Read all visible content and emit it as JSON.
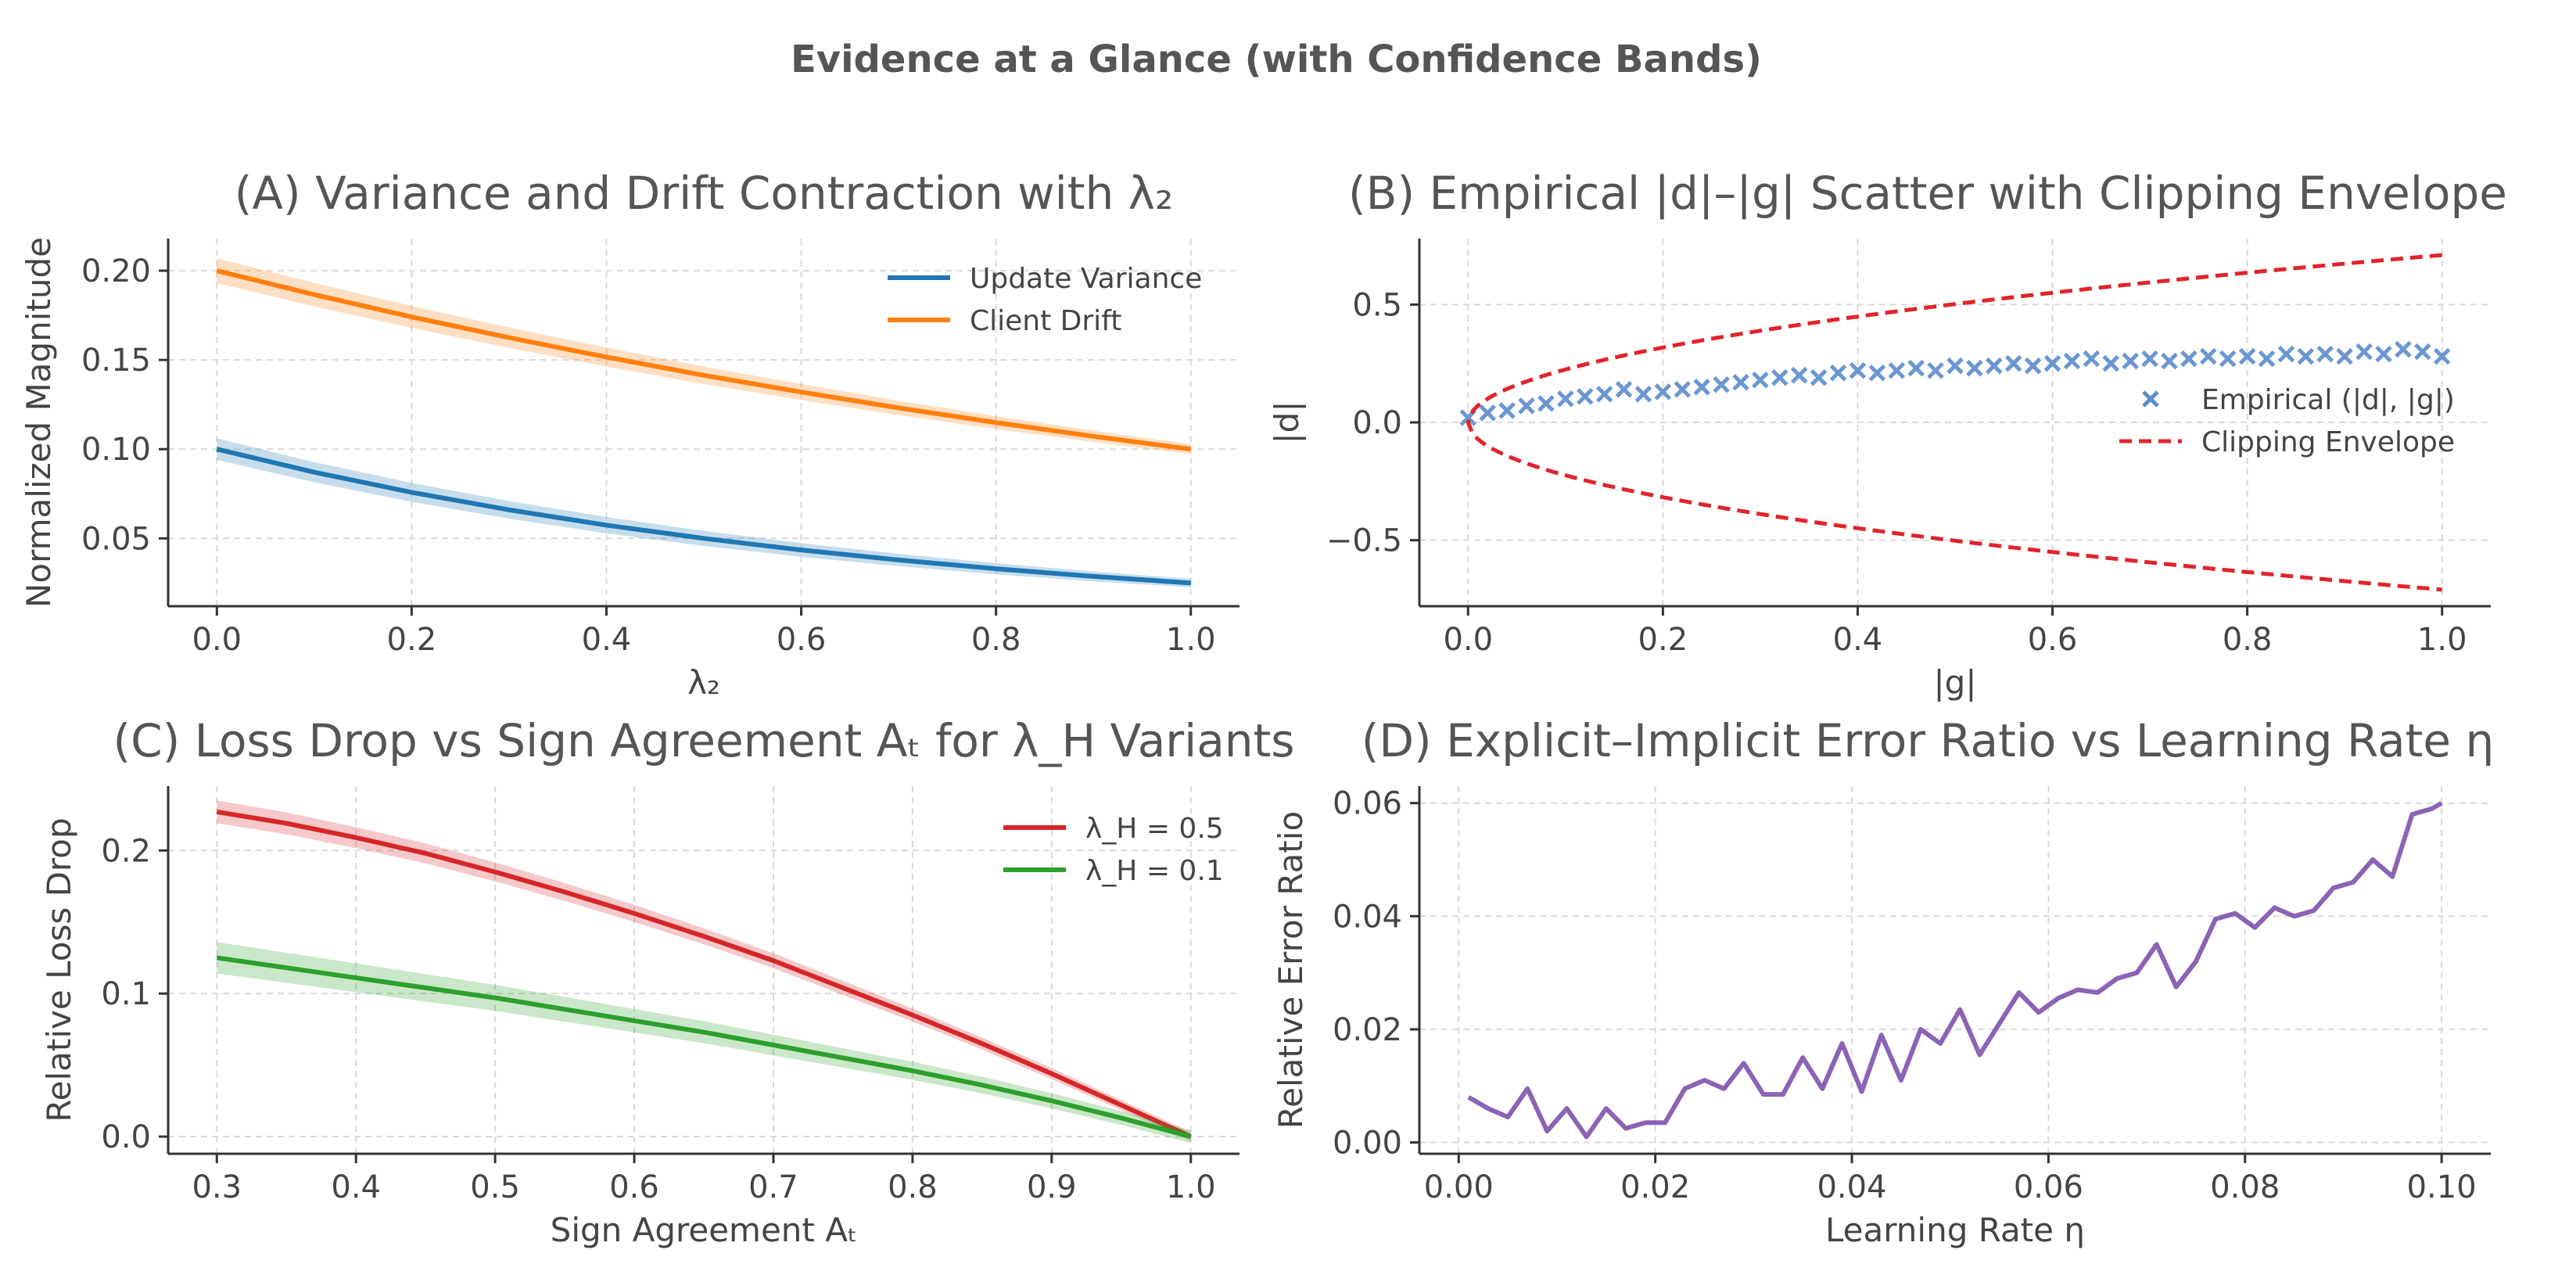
{
  "suptitle": "Evidence at a Glance (with Confidence Bands)",
  "chart_data": [
    {
      "type": "line",
      "title": "(A) Variance and Drift Contraction with λ₂",
      "xlabel": "λ₂",
      "ylabel": "Normalized Magnitude",
      "xlim": [
        -0.05,
        1.05
      ],
      "ylim": [
        0.012,
        0.218
      ],
      "xticks": [
        0.0,
        0.2,
        0.4,
        0.6,
        0.8,
        1.0
      ],
      "xtick_labels": [
        "0.0",
        "0.2",
        "0.4",
        "0.6",
        "0.8",
        "1.0"
      ],
      "yticks": [
        0.05,
        0.1,
        0.15,
        0.2
      ],
      "ytick_labels": [
        "0.05",
        "0.10",
        "0.15",
        "0.20"
      ],
      "grid": true,
      "legend": "top-right",
      "x": [
        0.0,
        0.1,
        0.2,
        0.3,
        0.4,
        0.5,
        0.6,
        0.7,
        0.8,
        0.9,
        1.0
      ],
      "series": [
        {
          "name": "Update Variance",
          "color": "#1f77b4",
          "values": [
            0.1,
            0.0871,
            0.0758,
            0.066,
            0.0574,
            0.05,
            0.0435,
            0.0379,
            0.033,
            0.0287,
            0.025
          ],
          "band": 0.006
        },
        {
          "name": "Client Drift",
          "color": "#ff7f0e",
          "values": [
            0.2,
            0.1866,
            0.1741,
            0.1625,
            0.1516,
            0.1414,
            0.132,
            0.1231,
            0.1149,
            0.1072,
            0.1
          ],
          "band": 0.007
        }
      ]
    },
    {
      "type": "scatter",
      "title": "(B) Empirical |d|–|g| Scatter with Clipping Envelope",
      "xlabel": "|g|",
      "ylabel": "|d|",
      "xlim": [
        -0.05,
        1.05
      ],
      "ylim": [
        -0.78,
        0.78
      ],
      "xticks": [
        0.0,
        0.2,
        0.4,
        0.6,
        0.8,
        1.0
      ],
      "xtick_labels": [
        "0.0",
        "0.2",
        "0.4",
        "0.6",
        "0.8",
        "1.0"
      ],
      "yticks": [
        -0.5,
        0.0,
        0.5
      ],
      "ytick_labels": [
        "−0.5",
        "0.0",
        "0.5"
      ],
      "grid": true,
      "legend": "center-right",
      "series": [
        {
          "name": "Empirical (|d|, |g|)",
          "color": "#5b8ccc",
          "marker": "x",
          "x": [
            0.0,
            0.02,
            0.04,
            0.06,
            0.08,
            0.1,
            0.12,
            0.14,
            0.16,
            0.18,
            0.2,
            0.22,
            0.24,
            0.26,
            0.28,
            0.3,
            0.32,
            0.34,
            0.36,
            0.38,
            0.4,
            0.42,
            0.44,
            0.46,
            0.48,
            0.5,
            0.52,
            0.54,
            0.56,
            0.58,
            0.6,
            0.62,
            0.64,
            0.66,
            0.68,
            0.7,
            0.72,
            0.74,
            0.76,
            0.78,
            0.8,
            0.82,
            0.84,
            0.86,
            0.88,
            0.9,
            0.92,
            0.94,
            0.96,
            0.98,
            1.0
          ],
          "values": [
            0.02,
            0.04,
            0.05,
            0.07,
            0.08,
            0.1,
            0.11,
            0.12,
            0.14,
            0.12,
            0.13,
            0.14,
            0.15,
            0.16,
            0.17,
            0.18,
            0.19,
            0.2,
            0.19,
            0.21,
            0.22,
            0.21,
            0.22,
            0.23,
            0.22,
            0.24,
            0.23,
            0.24,
            0.25,
            0.24,
            0.25,
            0.26,
            0.27,
            0.25,
            0.26,
            0.27,
            0.26,
            0.27,
            0.28,
            0.27,
            0.28,
            0.27,
            0.29,
            0.28,
            0.29,
            0.28,
            0.3,
            0.29,
            0.31,
            0.3,
            0.28
          ]
        },
        {
          "name": "Clipping Envelope",
          "color": "#e0242b",
          "dashed": true,
          "formula": "±0.71·sqrt(|g|)"
        }
      ]
    },
    {
      "type": "line",
      "title": "(C) Loss Drop vs Sign Agreement Aₜ for λ_H Variants",
      "xlabel": "Sign Agreement Aₜ",
      "ylabel": "Relative Loss Drop",
      "xlim": [
        0.265,
        1.035
      ],
      "ylim": [
        -0.012,
        0.245
      ],
      "xticks": [
        0.3,
        0.4,
        0.5,
        0.6,
        0.7,
        0.8,
        0.9,
        1.0
      ],
      "xtick_labels": [
        "0.3",
        "0.4",
        "0.5",
        "0.6",
        "0.7",
        "0.8",
        "0.9",
        "1.0"
      ],
      "yticks": [
        0.0,
        0.1,
        0.2
      ],
      "ytick_labels": [
        "0.0",
        "0.1",
        "0.2"
      ],
      "grid": true,
      "legend": "top-right",
      "x": [
        0.3,
        0.35,
        0.4,
        0.45,
        0.5,
        0.55,
        0.6,
        0.65,
        0.7,
        0.75,
        0.8,
        0.85,
        0.9,
        0.95,
        1.0
      ],
      "series": [
        {
          "name": "λ_H = 0.5",
          "color": "#d62728",
          "values": [
            0.227,
            0.219,
            0.209,
            0.198,
            0.185,
            0.171,
            0.156,
            0.14,
            0.123,
            0.104,
            0.085,
            0.065,
            0.044,
            0.022,
            0.0
          ],
          "band": 0.008
        },
        {
          "name": "λ_H = 0.1",
          "color": "#2ca02c",
          "values": [
            0.125,
            0.118,
            0.111,
            0.104,
            0.097,
            0.089,
            0.081,
            0.073,
            0.064,
            0.055,
            0.046,
            0.036,
            0.025,
            0.013,
            0.0
          ],
          "band": 0.011
        }
      ]
    },
    {
      "type": "line",
      "title": "(D) Explicit–Implicit Error Ratio vs Learning Rate η",
      "xlabel": "Learning Rate η",
      "ylabel": "Relative Error Ratio",
      "xlim": [
        -0.004,
        0.105
      ],
      "ylim": [
        -0.002,
        0.063
      ],
      "xticks": [
        0.0,
        0.02,
        0.04,
        0.06,
        0.08,
        0.1
      ],
      "xtick_labels": [
        "0.00",
        "0.02",
        "0.04",
        "0.06",
        "0.08",
        "0.10"
      ],
      "yticks": [
        0.0,
        0.02,
        0.04,
        0.06
      ],
      "ytick_labels": [
        "0.00",
        "0.02",
        "0.04",
        "0.06"
      ],
      "grid": true,
      "x": [
        0.001,
        0.003,
        0.005,
        0.007,
        0.009,
        0.011,
        0.013,
        0.015,
        0.017,
        0.019,
        0.021,
        0.023,
        0.025,
        0.027,
        0.029,
        0.031,
        0.033,
        0.035,
        0.037,
        0.039,
        0.041,
        0.043,
        0.045,
        0.047,
        0.049,
        0.051,
        0.053,
        0.055,
        0.057,
        0.059,
        0.061,
        0.063,
        0.065,
        0.067,
        0.069,
        0.071,
        0.073,
        0.075,
        0.077,
        0.079,
        0.081,
        0.083,
        0.085,
        0.087,
        0.089,
        0.091,
        0.093,
        0.095,
        0.097,
        0.099,
        0.1
      ],
      "series": [
        {
          "name": "",
          "color": "#8c62b5",
          "values": [
            0.008,
            0.006,
            0.0045,
            0.0095,
            0.002,
            0.006,
            0.001,
            0.006,
            0.0025,
            0.0035,
            0.0035,
            0.0095,
            0.011,
            0.0095,
            0.014,
            0.0085,
            0.0085,
            0.015,
            0.0095,
            0.0175,
            0.009,
            0.019,
            0.011,
            0.02,
            0.0175,
            0.0235,
            0.0155,
            0.021,
            0.0265,
            0.023,
            0.0255,
            0.027,
            0.0265,
            0.029,
            0.03,
            0.035,
            0.0275,
            0.032,
            0.0395,
            0.0405,
            0.038,
            0.0415,
            0.04,
            0.041,
            0.045,
            0.046,
            0.05,
            0.047,
            0.058,
            0.059,
            0.06
          ]
        }
      ]
    }
  ]
}
